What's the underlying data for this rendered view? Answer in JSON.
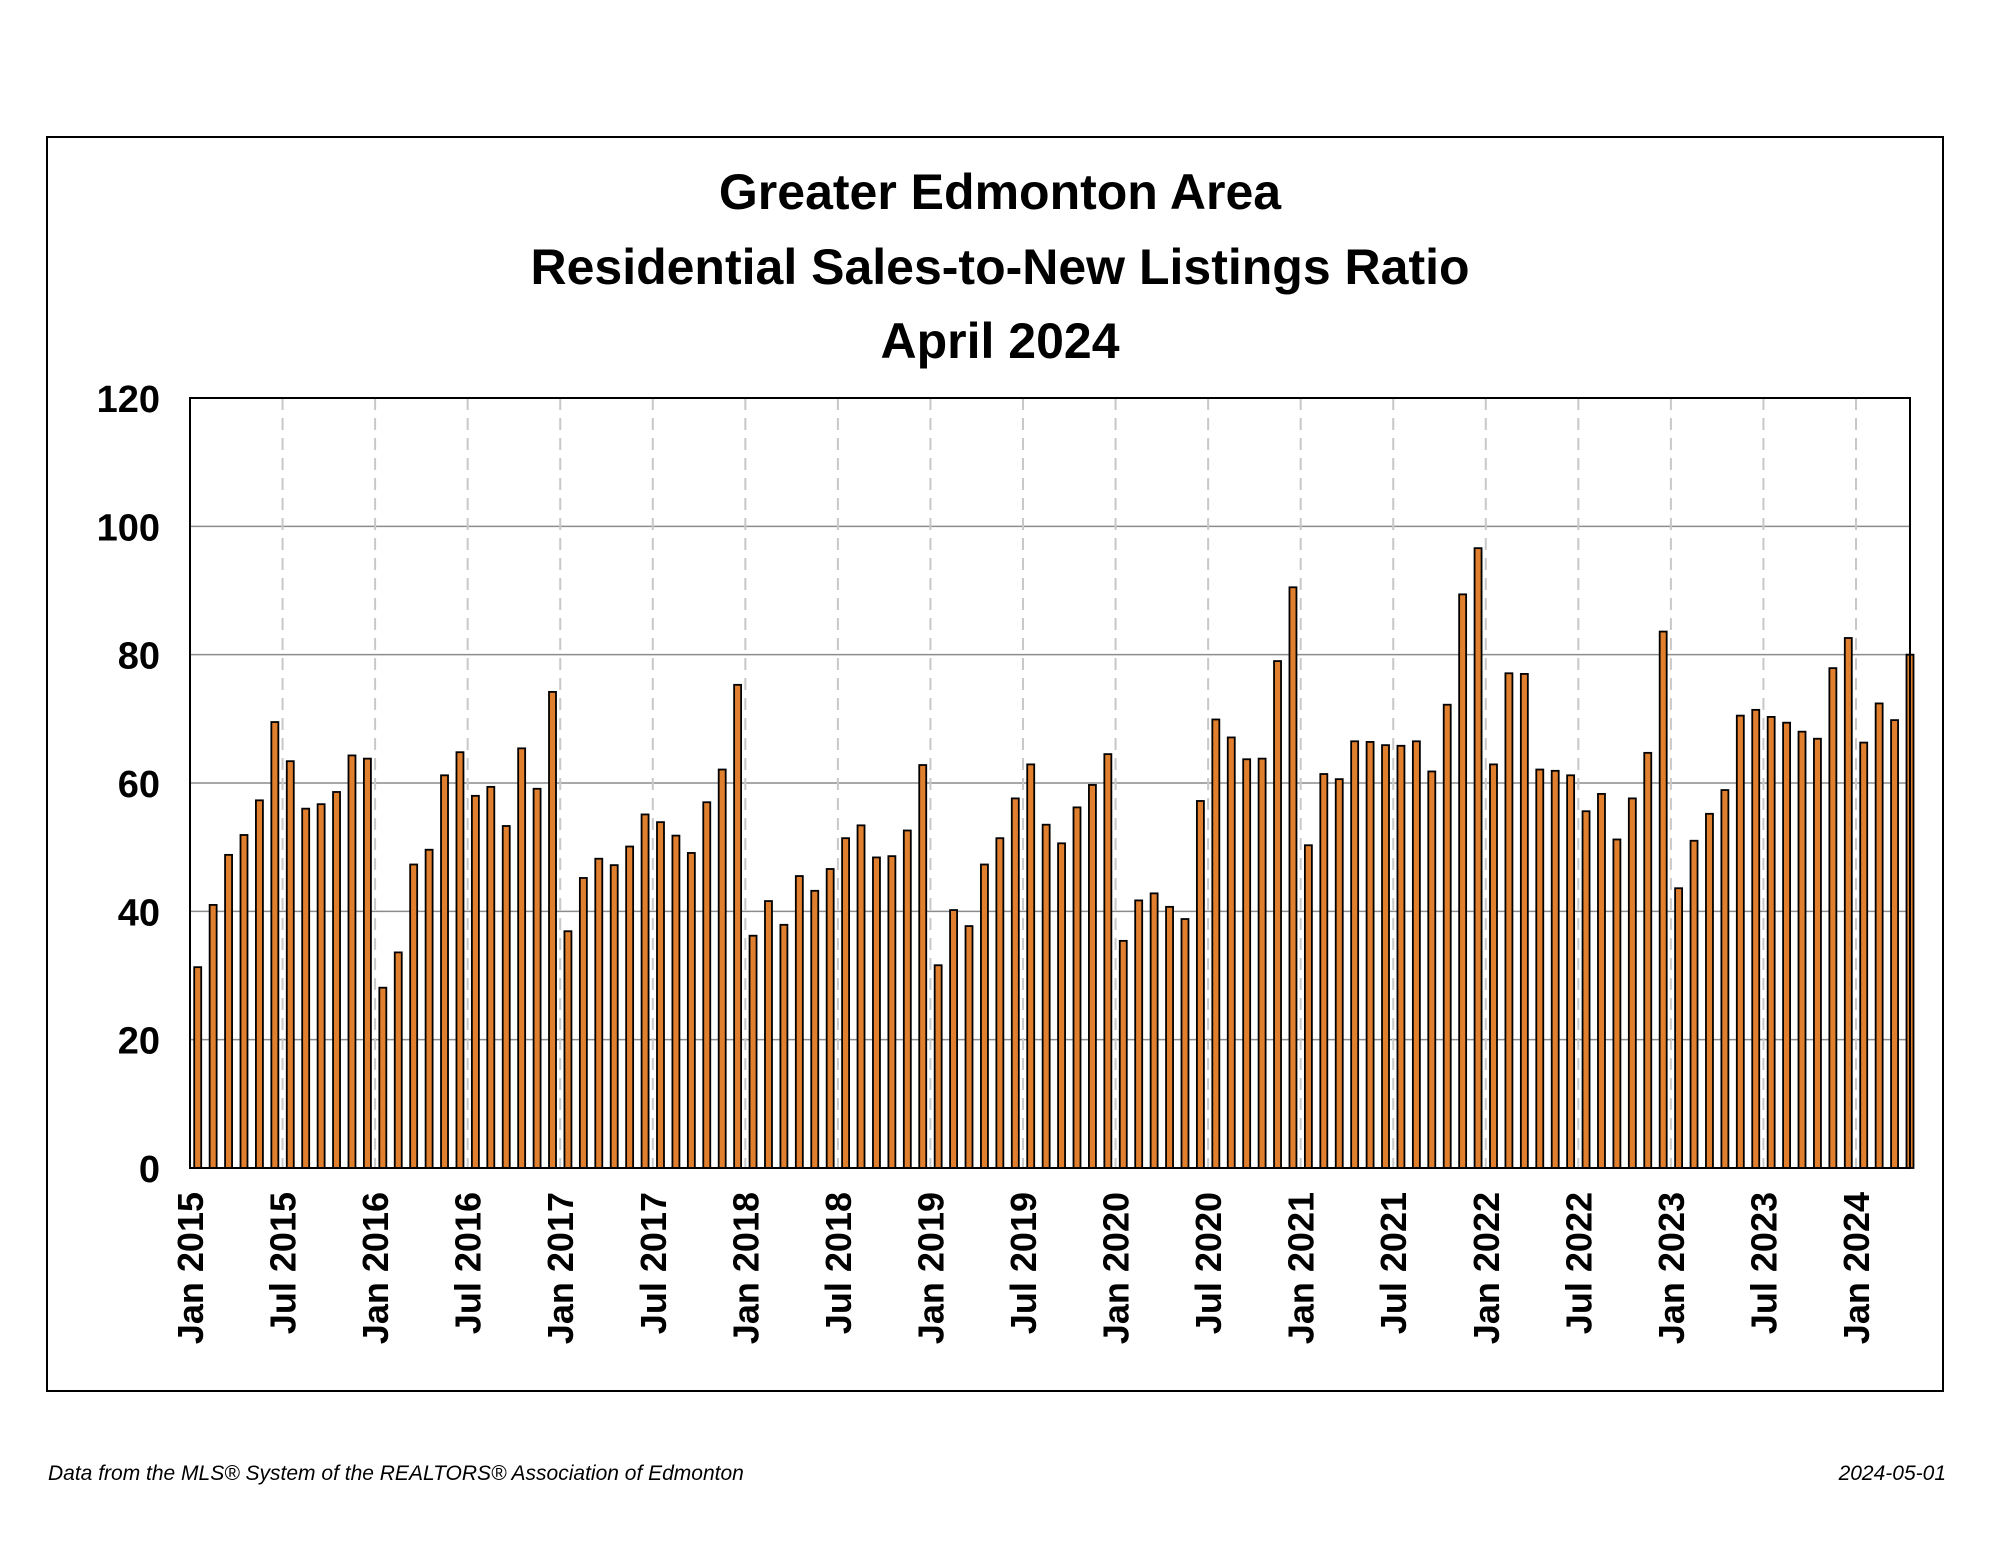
{
  "chart_data": {
    "type": "bar",
    "title": [
      "Greater Edmonton Area",
      "Residential Sales-to-New Listings Ratio",
      "April 2024"
    ],
    "xlabel": "",
    "ylabel": "",
    "ylim": [
      0,
      120
    ],
    "yticks": [
      "0",
      "20",
      "40",
      "60",
      "80",
      "100",
      "120"
    ],
    "xtick_labels": [
      "Jan 2015",
      "Jul 2015",
      "Jan 2016",
      "Jul 2016",
      "Jan 2017",
      "Jul 2017",
      "Jan 2018",
      "Jul 2018",
      "Jan 2019",
      "Jul 2019",
      "Jan 2020",
      "Jul 2020",
      "Jan 2021",
      "Jul 2021",
      "Jan 2022",
      "Jul 2022",
      "Jan 2023",
      "Jul 2023",
      "Jan 2024"
    ],
    "grid": true,
    "start_month": "Jan 2015",
    "end_month": "Apr 2024",
    "bar_color": "#e07f2e",
    "values": [
      31.3,
      41.0,
      48.8,
      51.9,
      57.3,
      69.5,
      63.4,
      56.0,
      56.7,
      58.6,
      64.3,
      63.8,
      28.1,
      33.6,
      47.3,
      49.6,
      61.2,
      64.8,
      58.0,
      59.4,
      53.3,
      65.4,
      59.1,
      74.2,
      36.9,
      45.2,
      48.2,
      47.2,
      50.1,
      55.1,
      53.9,
      51.8,
      49.1,
      57.0,
      62.1,
      75.3,
      36.2,
      41.6,
      37.9,
      45.5,
      43.2,
      46.6,
      51.4,
      53.4,
      48.4,
      48.6,
      52.6,
      62.8,
      31.6,
      40.2,
      37.7,
      47.3,
      51.4,
      57.6,
      62.9,
      53.5,
      50.6,
      56.2,
      59.7,
      64.5,
      35.4,
      41.7,
      42.8,
      40.7,
      38.8,
      57.2,
      69.9,
      67.1,
      63.7,
      63.8,
      79.0,
      90.5,
      50.3,
      61.4,
      60.6,
      66.5,
      66.4,
      65.9,
      65.8,
      66.5,
      61.8,
      72.2,
      89.4,
      96.6,
      62.9,
      77.1,
      77.0,
      62.1,
      61.9,
      61.2,
      55.6,
      58.3,
      51.2,
      57.6,
      64.7,
      83.6,
      43.6,
      51.0,
      55.2,
      58.9,
      70.5,
      71.4,
      70.3,
      69.4,
      68.0,
      66.9,
      77.9,
      82.6,
      66.3,
      72.4,
      69.8,
      80.0
    ]
  },
  "footer": {
    "source": "Data from the MLS® System of the REALTORS® Association of Edmonton",
    "date": "2024-05-01"
  }
}
